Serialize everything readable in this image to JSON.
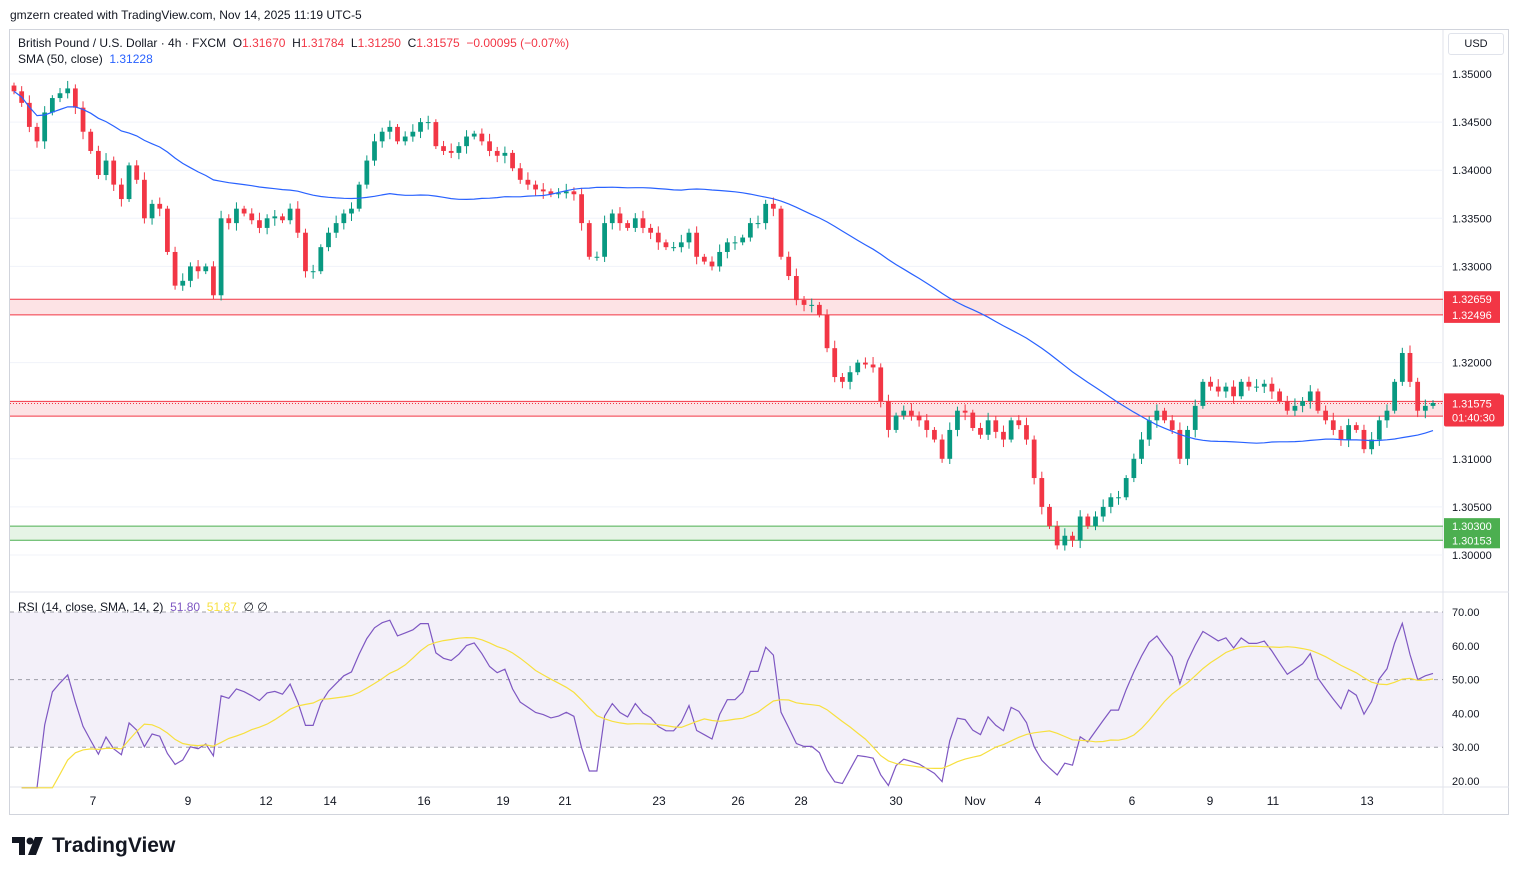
{
  "header": {
    "author_line": "gmzern created with TradingView.com, Nov 14, 2025 11:19 UTC-5"
  },
  "legend": {
    "symbol": "British Pound / U.S. Dollar · 4h · FXCM",
    "open_label": "O",
    "open": "1.31670",
    "high_label": "H",
    "high": "1.31784",
    "low_label": "L",
    "low": "1.31250",
    "close_label": "C",
    "close": "1.31575",
    "change": "−0.00095 (−0.07%)",
    "sma_label": "SMA (50, close)",
    "sma_value": "1.31228"
  },
  "rsi_legend": {
    "label": "RSI (14, close, SMA, 14, 2)",
    "rsi_value": "51.80",
    "ma_value": "51.87",
    "extra": "∅ ∅"
  },
  "currency": "USD",
  "brand": {
    "name": "TradingView"
  },
  "colors": {
    "up": "#089981",
    "down": "#f23645",
    "sma": "#2962ff",
    "rsi": "#7e57c2",
    "rsi_ma": "#f7e03f",
    "resistance_zone": "#f23645",
    "support_zone": "#4caf50",
    "price_tag": "#f23645",
    "support_tag": "#4caf50"
  },
  "chart_data": [
    {
      "type": "candlestick",
      "name": "GBPUSD 4h",
      "ylim": [
        1.2965,
        1.3545
      ],
      "y_ticks": [
        "1.35000",
        "1.34500",
        "1.34000",
        "1.33500",
        "1.33000",
        "1.32000",
        "1.31000",
        "1.30500",
        "1.30000"
      ],
      "x_ticks": [
        "7",
        "9",
        "12",
        "14",
        "16",
        "19",
        "21",
        "23",
        "26",
        "28",
        "30",
        "Nov",
        "4",
        "6",
        "9",
        "11",
        "13"
      ],
      "close_series": [
        1.3482,
        1.347,
        1.3445,
        1.343,
        1.346,
        1.3475,
        1.348,
        1.3485,
        1.3465,
        1.344,
        1.342,
        1.3395,
        1.341,
        1.3385,
        1.337,
        1.3405,
        1.339,
        1.335,
        1.3365,
        1.336,
        1.3315,
        1.328,
        1.3285,
        1.33,
        1.3295,
        1.33,
        1.327,
        1.335,
        1.3345,
        1.336,
        1.3355,
        1.3348,
        1.334,
        1.335,
        1.3352,
        1.3348,
        1.336,
        1.3335,
        1.3295,
        1.3295,
        1.332,
        1.3335,
        1.3345,
        1.3355,
        1.336,
        1.3385,
        1.341,
        1.343,
        1.344,
        1.3445,
        1.343,
        1.3435,
        1.344,
        1.345,
        1.345,
        1.3425,
        1.342,
        1.3418,
        1.3425,
        1.3435,
        1.3438,
        1.343,
        1.342,
        1.3415,
        1.3418,
        1.3402,
        1.339,
        1.3385,
        1.338,
        1.3378,
        1.3375,
        1.3376,
        1.3378,
        1.3375,
        1.3345,
        1.331,
        1.331,
        1.3345,
        1.3355,
        1.3345,
        1.334,
        1.335,
        1.334,
        1.3335,
        1.3325,
        1.332,
        1.332,
        1.3325,
        1.3335,
        1.331,
        1.3305,
        1.33,
        1.3315,
        1.3325,
        1.3325,
        1.333,
        1.3345,
        1.3345,
        1.3365,
        1.336,
        1.331,
        1.329,
        1.3265,
        1.326,
        1.326,
        1.325,
        1.3215,
        1.3185,
        1.318,
        1.319,
        1.32,
        1.3198,
        1.3195,
        1.316,
        1.313,
        1.3145,
        1.315,
        1.3145,
        1.314,
        1.313,
        1.312,
        1.31,
        1.313,
        1.315,
        1.3148,
        1.3132,
        1.3125,
        1.314,
        1.3128,
        1.312,
        1.314,
        1.3135,
        1.312,
        1.308,
        1.305,
        1.303,
        1.301,
        1.302,
        1.3015,
        1.304,
        1.303,
        1.304,
        1.305,
        1.306,
        1.306,
        1.308,
        1.31,
        1.312,
        1.314,
        1.315,
        1.314,
        1.313,
        1.31,
        1.313,
        1.3155,
        1.318,
        1.3175,
        1.317,
        1.3175,
        1.3165,
        1.318,
        1.3175,
        1.3175,
        1.3178,
        1.317,
        1.316,
        1.315,
        1.3155,
        1.316,
        1.317,
        1.315,
        1.314,
        1.313,
        1.312,
        1.3135,
        1.313,
        1.311,
        1.312,
        1.314,
        1.315,
        1.318,
        1.321,
        1.318,
        1.315,
        1.3155,
        1.3158
      ],
      "sma_period": 50,
      "zones": [
        {
          "kind": "resistance",
          "upper": 1.32659,
          "lower": 1.32496,
          "upper_label": "1.32659",
          "lower_label": "1.32496"
        },
        {
          "kind": "resistance",
          "upper": 1.31597,
          "lower": 1.31444,
          "upper_label": "1.31597",
          "lower_label": "1.31444"
        },
        {
          "kind": "support",
          "upper": 1.303,
          "lower": 1.30153,
          "upper_label": "1.30300",
          "lower_label": "1.30153"
        }
      ],
      "last_price": {
        "value": 1.31575,
        "label": "1.31575",
        "countdown": "01:40:30"
      }
    },
    {
      "type": "line",
      "name": "RSI (14)",
      "ylim": [
        17,
        73
      ],
      "y_ticks": [
        "70.00",
        "60.00",
        "50.00",
        "40.00",
        "30.00",
        "20.00"
      ],
      "band": [
        30,
        70
      ],
      "ma_period": 14
    }
  ]
}
